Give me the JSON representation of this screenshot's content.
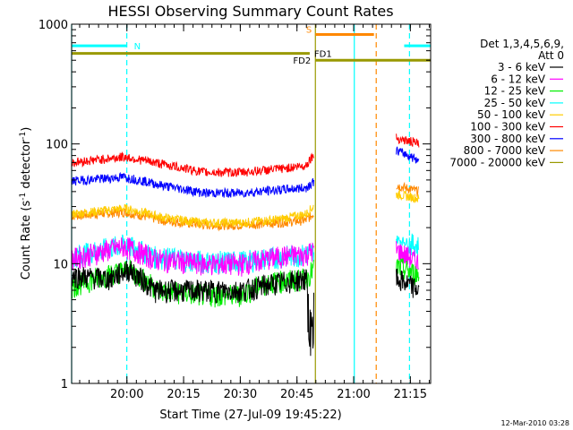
{
  "chart_data": {
    "type": "line",
    "title": "HESSI Observing Summary Count Rates",
    "xlabel": "Start Time (27-Jul-09 19:45:22)",
    "ylabel_main": "Count Rate (s",
    "ylabel_sup1": "-1",
    "ylabel_mid": " detector",
    "ylabel_sup2": "-1",
    "ylabel_end": ")",
    "yscale": "log",
    "ylim": [
      1,
      1000
    ],
    "xlim_minutes": [
      0,
      95
    ],
    "x_ticks": [
      {
        "label": "20:00",
        "minute": 14.63
      },
      {
        "label": "20:15",
        "minute": 29.63
      },
      {
        "label": "20:30",
        "minute": 44.63
      },
      {
        "label": "20:45",
        "minute": 59.63
      },
      {
        "label": "21:00",
        "minute": 74.63
      },
      {
        "label": "21:15",
        "minute": 89.63
      }
    ],
    "y_ticks": [
      {
        "label": "1",
        "value": 1
      },
      {
        "label": "10",
        "value": 10
      },
      {
        "label": "100",
        "value": 100
      },
      {
        "label": "1000",
        "value": 1000
      }
    ],
    "legend_header": [
      "Det 1,3,4,5,6,9,",
      "Att 0"
    ],
    "legend_position": "top-right",
    "series": [
      {
        "name": "3 - 6 keV",
        "color": "#000000",
        "points": [
          [
            0,
            8
          ],
          [
            10,
            7.5
          ],
          [
            15,
            9
          ],
          [
            22,
            6
          ],
          [
            35,
            6
          ],
          [
            45,
            6
          ],
          [
            55,
            7
          ],
          [
            62,
            7.5
          ],
          [
            63.5,
            3
          ],
          [
            64,
            5
          ],
          [
            86,
            7.5
          ],
          [
            92,
            6
          ]
        ]
      },
      {
        "name": "6 - 12 keV",
        "color": "#ff00ff",
        "points": [
          [
            0,
            11
          ],
          [
            14,
            14
          ],
          [
            22,
            11
          ],
          [
            35,
            10
          ],
          [
            45,
            10
          ],
          [
            55,
            11.5
          ],
          [
            62,
            12
          ],
          [
            64,
            13
          ],
          [
            86,
            13
          ],
          [
            92,
            10
          ]
        ]
      },
      {
        "name": "12 - 25 keV",
        "color": "#00ee00",
        "points": [
          [
            0,
            6.5
          ],
          [
            15,
            9
          ],
          [
            23,
            6
          ],
          [
            35,
            5.5
          ],
          [
            45,
            5.5
          ],
          [
            52,
            7
          ],
          [
            62,
            7.5
          ],
          [
            64,
            9
          ],
          [
            86,
            9.5
          ],
          [
            92,
            8
          ]
        ]
      },
      {
        "name": "25 - 50 keV",
        "color": "#00ffff",
        "points": [
          [
            0,
            11.5
          ],
          [
            14,
            14.5
          ],
          [
            22,
            11.5
          ],
          [
            35,
            10.5
          ],
          [
            45,
            10.5
          ],
          [
            55,
            11.5
          ],
          [
            62,
            12
          ],
          [
            64,
            13
          ],
          [
            86,
            16
          ],
          [
            92,
            14
          ]
        ]
      },
      {
        "name": "50 - 100 keV",
        "color": "#ffcc00",
        "points": [
          [
            0,
            26
          ],
          [
            14,
            29
          ],
          [
            25,
            24
          ],
          [
            35,
            22
          ],
          [
            45,
            22
          ],
          [
            55,
            23.5
          ],
          [
            62,
            26
          ],
          [
            64,
            30
          ],
          [
            86,
            38
          ],
          [
            92,
            35
          ]
        ]
      },
      {
        "name": "100 - 300 keV",
        "color": "#ff0000",
        "points": [
          [
            0,
            70
          ],
          [
            14,
            78
          ],
          [
            24,
            68
          ],
          [
            35,
            58
          ],
          [
            45,
            58
          ],
          [
            55,
            62
          ],
          [
            62,
            66
          ],
          [
            63.8,
            80
          ],
          [
            86,
            112
          ],
          [
            92,
            100
          ]
        ]
      },
      {
        "name": "300 - 800 keV",
        "color": "#0000ff",
        "points": [
          [
            0,
            49
          ],
          [
            14,
            53
          ],
          [
            24,
            45
          ],
          [
            35,
            39
          ],
          [
            45,
            39
          ],
          [
            55,
            41.5
          ],
          [
            62,
            43
          ],
          [
            63.8,
            48
          ],
          [
            86,
            88
          ],
          [
            92,
            73
          ]
        ]
      },
      {
        "name": "800 - 7000 keV",
        "color": "#ff8800",
        "points": [
          [
            0,
            25
          ],
          [
            14,
            27
          ],
          [
            24,
            23
          ],
          [
            35,
            21
          ],
          [
            45,
            21
          ],
          [
            55,
            22
          ],
          [
            62,
            23
          ],
          [
            64,
            26
          ],
          [
            86,
            45
          ],
          [
            92,
            40
          ]
        ]
      },
      {
        "name": "7000 - 20000 keV",
        "color": "#999900",
        "points": []
      }
    ],
    "flag_bars": [
      {
        "label": "N",
        "color": "#00ffff",
        "segments": [
          [
            0,
            14.6
          ],
          [
            88,
            95
          ]
        ],
        "value": 660
      },
      {
        "label": "S",
        "color": "#ff8800",
        "segments": [
          [
            64.5,
            80
          ]
        ],
        "value": 820
      },
      {
        "label": "FD1",
        "color": "#999900",
        "segments": [
          [
            0,
            63
          ]
        ],
        "value": 570
      },
      {
        "label": "FD2",
        "color": "#999900",
        "segments": [
          [
            64.5,
            95
          ]
        ],
        "value": 500
      }
    ],
    "markers": [
      {
        "minute": 0,
        "color": "#00ffff",
        "style": "solid"
      },
      {
        "minute": 14.6,
        "color": "#00ffff",
        "style": "dashed"
      },
      {
        "minute": 64.5,
        "color": "#999900",
        "style": "solid"
      },
      {
        "minute": 74.8,
        "color": "#00ffff",
        "style": "solid"
      },
      {
        "minute": 80.6,
        "color": "#ff8800",
        "style": "dashed"
      },
      {
        "minute": 89.4,
        "color": "#00ffff",
        "style": "dashed"
      }
    ],
    "timestamp": "12-Mar-2010 03:28"
  }
}
